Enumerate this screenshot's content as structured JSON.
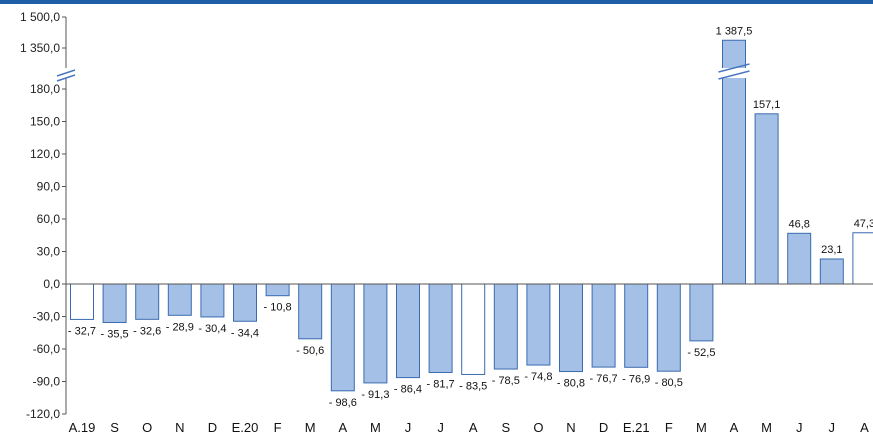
{
  "colors": {
    "top_rule": "#1f5fa8",
    "bar_fill": "#a5c0e6",
    "bar_stroke": "#3a6bb0",
    "hollow_fill": "#ffffff",
    "axis": "#555555"
  },
  "chart_data": {
    "type": "bar",
    "title": "",
    "xlabel": "",
    "ylabel": "",
    "y_axis": {
      "broken": true,
      "lower_range": [
        -120,
        180
      ],
      "upper_range": [
        1350,
        1500
      ],
      "tick_labels": [
        "1 500,0",
        "1 350,0",
        "180,0",
        "150,0",
        "120,0",
        "90,0",
        "60,0",
        "30,0",
        "0,0",
        "-30,0",
        "-60,0",
        "-90,0",
        "-120,0"
      ]
    },
    "grid": false,
    "legend": "none",
    "categories": [
      "A.19",
      "S",
      "O",
      "N",
      "D",
      "E.20",
      "F",
      "M",
      "A",
      "M",
      "J",
      "J",
      "A",
      "S",
      "O",
      "N",
      "D",
      "E.21",
      "F",
      "M",
      "A",
      "M",
      "J",
      "J",
      "A"
    ],
    "values": [
      -32.7,
      -35.5,
      -32.6,
      -28.9,
      -30.4,
      -34.4,
      -10.8,
      -50.6,
      -98.6,
      -91.3,
      -86.4,
      -81.7,
      -83.5,
      -78.5,
      -74.8,
      -80.8,
      -76.7,
      -76.9,
      -80.5,
      -52.5,
      1387.5,
      157.1,
      46.8,
      23.1,
      47.3
    ],
    "value_labels": [
      "- 32,7",
      "- 35,5",
      "- 32,6",
      "- 28,9",
      "- 30,4",
      "- 34,4",
      "- 10,8",
      "- 50,6",
      "- 98,6",
      "- 91,3",
      "- 86,4",
      "- 81,7",
      "- 83,5",
      "- 78,5",
      "- 74,8",
      "- 80,8",
      "- 76,7",
      "- 76,9",
      "- 80,5",
      "- 52,5",
      "1 387,5",
      "157,1",
      "46,8",
      "23,1",
      "47,3"
    ],
    "hollow_bars": [
      0,
      12,
      24
    ]
  }
}
